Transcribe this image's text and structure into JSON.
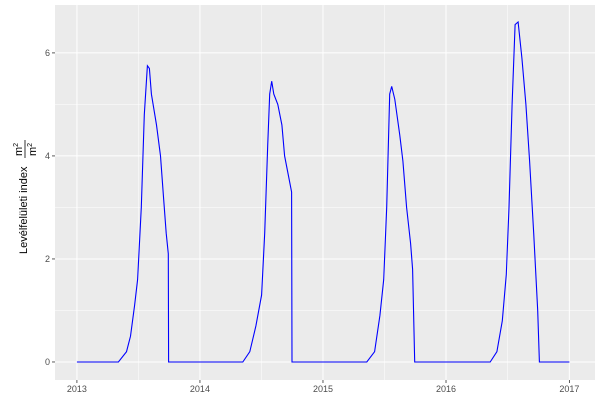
{
  "chart_data": {
    "type": "line",
    "title": "",
    "xlabel": "",
    "ylabel": "Levélfelületi index",
    "ylabel_unit_num": "m",
    "ylabel_unit_den": "m",
    "ylabel_unit_exp": "2",
    "xlim": [
      "2012-10-28",
      "2017-03-18"
    ],
    "ylim": [
      -0.35,
      6.93
    ],
    "x_ticks": [
      {
        "date": "2013-01-01",
        "label": "2013"
      },
      {
        "date": "2014-01-01",
        "label": "2014"
      },
      {
        "date": "2015-01-01",
        "label": "2015"
      },
      {
        "date": "2016-01-01",
        "label": "2016"
      },
      {
        "date": "2017-01-01",
        "label": "2017"
      }
    ],
    "y_ticks": [
      {
        "value": 0,
        "label": "0"
      },
      {
        "value": 2,
        "label": "2"
      },
      {
        "value": 4,
        "label": "4"
      },
      {
        "value": 6,
        "label": "6"
      }
    ],
    "grid": true,
    "background": "#ebebeb",
    "line_color": "#0000ff",
    "series": [
      {
        "points": [
          [
            "2013-01-01",
            0
          ],
          [
            "2013-05-04",
            0
          ],
          [
            "2013-05-28",
            0.2
          ],
          [
            "2013-06-09",
            0.5
          ],
          [
            "2013-06-21",
            1.1
          ],
          [
            "2013-06-30",
            1.6
          ],
          [
            "2013-07-11",
            3.0
          ],
          [
            "2013-07-20",
            4.8
          ],
          [
            "2013-07-29",
            5.75
          ],
          [
            "2013-08-04",
            5.7
          ],
          [
            "2013-08-10",
            5.2
          ],
          [
            "2013-08-25",
            4.6
          ],
          [
            "2013-09-06",
            4.0
          ],
          [
            "2013-09-15",
            3.2
          ],
          [
            "2013-09-23",
            2.5
          ],
          [
            "2013-09-29",
            2.1
          ],
          [
            "2013-09-30",
            0
          ],
          [
            "2014-05-08",
            0
          ],
          [
            "2014-05-29",
            0.2
          ],
          [
            "2014-06-16",
            0.7
          ],
          [
            "2014-07-03",
            1.3
          ],
          [
            "2014-07-12",
            2.5
          ],
          [
            "2014-07-21",
            4.2
          ],
          [
            "2014-07-27",
            5.2
          ],
          [
            "2014-08-02",
            5.45
          ],
          [
            "2014-08-08",
            5.2
          ],
          [
            "2014-08-20",
            5.0
          ],
          [
            "2014-09-01",
            4.6
          ],
          [
            "2014-09-09",
            4.0
          ],
          [
            "2014-09-21",
            3.6
          ],
          [
            "2014-09-30",
            3.3
          ],
          [
            "2014-10-01",
            0
          ],
          [
            "2015-05-11",
            0
          ],
          [
            "2015-06-03",
            0.2
          ],
          [
            "2015-06-19",
            0.9
          ],
          [
            "2015-06-30",
            1.6
          ],
          [
            "2015-07-09",
            3.0
          ],
          [
            "2015-07-18",
            5.2
          ],
          [
            "2015-07-24",
            5.35
          ],
          [
            "2015-08-02",
            5.1
          ],
          [
            "2015-08-17",
            4.4
          ],
          [
            "2015-08-26",
            3.9
          ],
          [
            "2015-09-06",
            3.0
          ],
          [
            "2015-09-18",
            2.3
          ],
          [
            "2015-09-24",
            1.8
          ],
          [
            "2015-09-30",
            0
          ],
          [
            "2016-05-11",
            0
          ],
          [
            "2016-05-31",
            0.2
          ],
          [
            "2016-06-16",
            0.8
          ],
          [
            "2016-06-28",
            1.7
          ],
          [
            "2016-07-06",
            3.0
          ],
          [
            "2016-07-15",
            5.0
          ],
          [
            "2016-07-24",
            6.55
          ],
          [
            "2016-08-02",
            6.6
          ],
          [
            "2016-08-13",
            5.9
          ],
          [
            "2016-08-25",
            5.0
          ],
          [
            "2016-09-05",
            3.9
          ],
          [
            "2016-09-17",
            2.5
          ],
          [
            "2016-09-29",
            1.0
          ],
          [
            "2016-10-04",
            0
          ],
          [
            "2017-01-01",
            0
          ]
        ]
      }
    ]
  }
}
